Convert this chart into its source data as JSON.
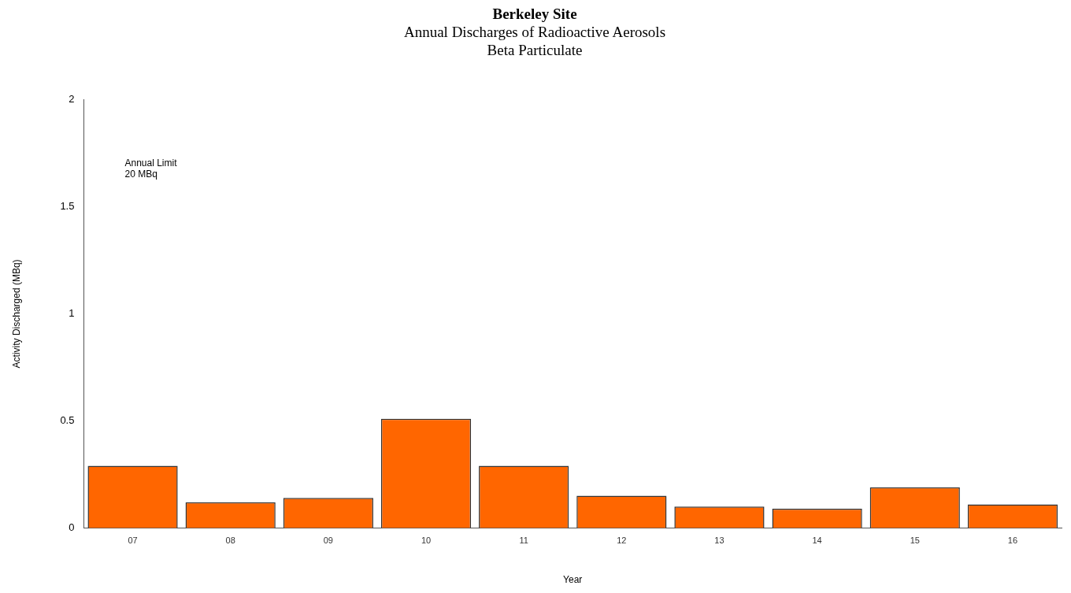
{
  "chart_data": {
    "type": "bar",
    "title": "Berkeley Site",
    "subtitle": "Annual Discharges of Radioactive Aerosols\nBeta Particulate",
    "xlabel": "Year",
    "ylabel": "Activity Discharged (MBq)",
    "categories": [
      "07",
      "08",
      "09",
      "10",
      "11",
      "12",
      "13",
      "14",
      "15",
      "16"
    ],
    "values": [
      0.29,
      0.12,
      0.14,
      0.51,
      0.29,
      0.15,
      0.1,
      0.09,
      0.19,
      0.11
    ],
    "color": "#ff6600",
    "ylim": [
      0,
      2
    ],
    "yticks": [
      0,
      0.5,
      1,
      1.5,
      2
    ],
    "grid": false,
    "annotations": [
      "Annual Limit\n20 MBq"
    ]
  }
}
